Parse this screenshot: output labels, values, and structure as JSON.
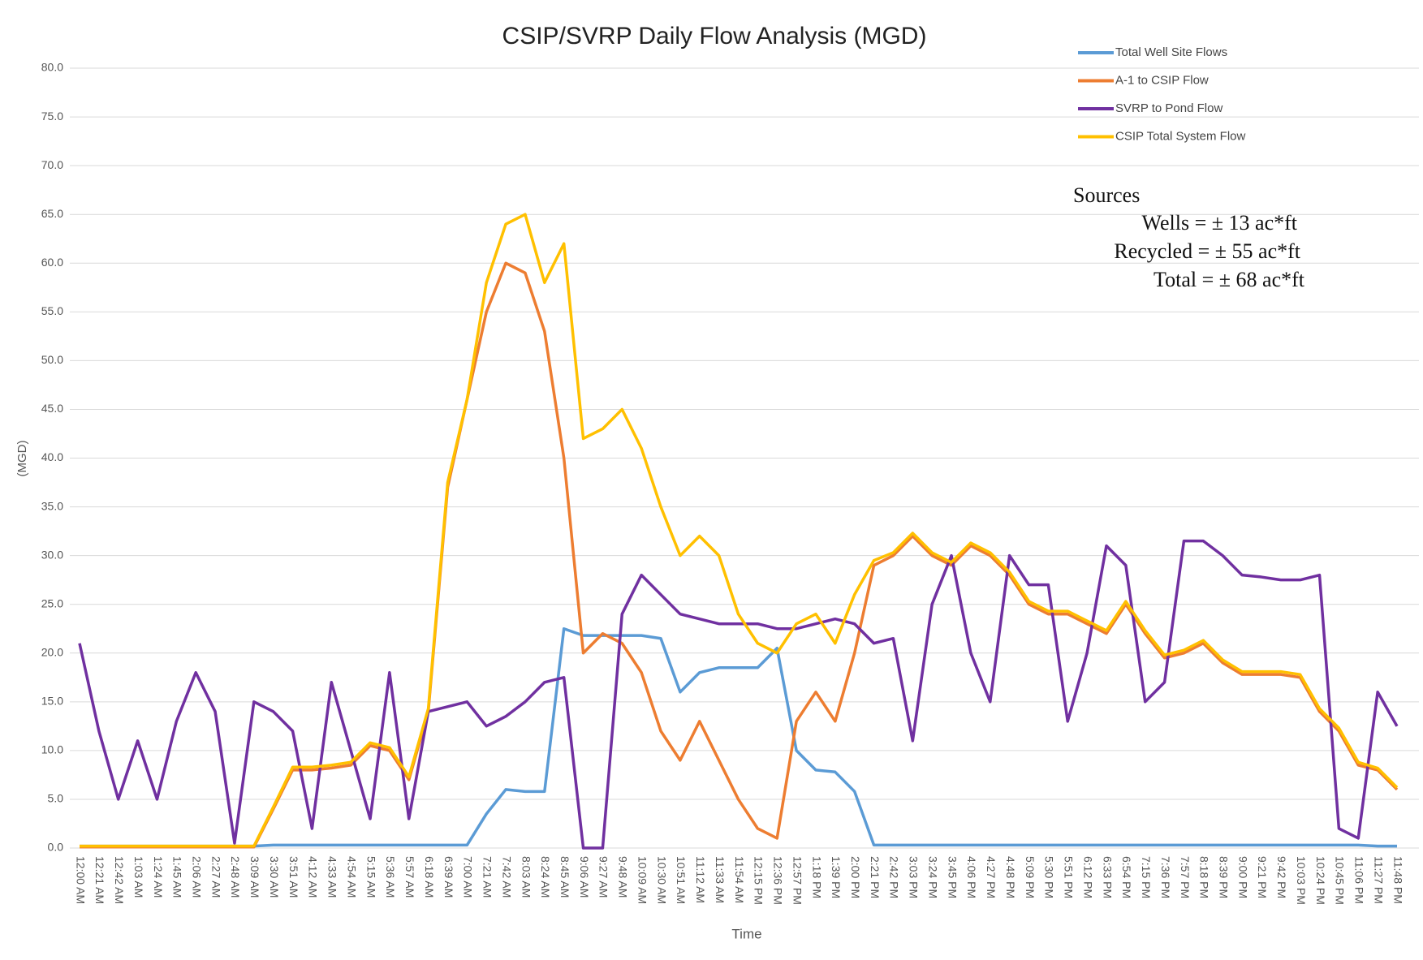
{
  "chart_data": {
    "type": "line",
    "title": "CSIP/SVRP Daily Flow Analysis (MGD)",
    "x_label": "Time",
    "y_label": "(MGD)",
    "annotations": [
      "Sources",
      "Wells =  ± 13 ac*ft",
      "Recycled  =  ± 55 ac*ft",
      "Total =   ± 68 ac*ft"
    ],
    "categories": [
      "12:00 AM",
      "12:21 AM",
      "12:42 AM",
      "1:03 AM",
      "1:24 AM",
      "1:45 AM",
      "2:06 AM",
      "2:27 AM",
      "2:48 AM",
      "3:09 AM",
      "3:30 AM",
      "3:51 AM",
      "4:12 AM",
      "4:33 AM",
      "4:54 AM",
      "5:15 AM",
      "5:36 AM",
      "5:57 AM",
      "6:18 AM",
      "6:39 AM",
      "7:00 AM",
      "7:21 AM",
      "7:42 AM",
      "8:03 AM",
      "8:24 AM",
      "8:45 AM",
      "9:06 AM",
      "9:27 AM",
      "9:48 AM",
      "10:09 AM",
      "10:30 AM",
      "10:51 AM",
      "11:12 AM",
      "11:33 AM",
      "11:54 AM",
      "12:15 PM",
      "12:36 PM",
      "12:57 PM",
      "1:18 PM",
      "1:39 PM",
      "2:00 PM",
      "2:21 PM",
      "2:42 PM",
      "3:03 PM",
      "3:24 PM",
      "3:45 PM",
      "4:06 PM",
      "4:27 PM",
      "4:48 PM",
      "5:09 PM",
      "5:30 PM",
      "5:51 PM",
      "6:12 PM",
      "6:33 PM",
      "6:54 PM",
      "7:15 PM",
      "7:36 PM",
      "7:57 PM",
      "8:18 PM",
      "8:39 PM",
      "9:00 PM",
      "9:21 PM",
      "9:42 PM",
      "10:03 PM",
      "10:24 PM",
      "10:45 PM",
      "11:06 PM",
      "11:27 PM",
      "11:48 PM"
    ],
    "series": [
      {
        "name": "Total Well Site Flows",
        "color": "#5b9bd5",
        "values": [
          0.2,
          0.2,
          0.2,
          0.2,
          0.2,
          0.2,
          0.2,
          0.2,
          0.2,
          0.2,
          0.3,
          0.3,
          0.3,
          0.3,
          0.3,
          0.3,
          0.3,
          0.3,
          0.3,
          0.3,
          0.3,
          3.5,
          6,
          5.8,
          5.8,
          22.5,
          21.8,
          21.8,
          21.8,
          21.8,
          21.5,
          16,
          18,
          18.5,
          18.5,
          18.5,
          20.5,
          10,
          8,
          7.8,
          5.8,
          0.3,
          0.3,
          0.3,
          0.3,
          0.3,
          0.3,
          0.3,
          0.3,
          0.3,
          0.3,
          0.3,
          0.3,
          0.3,
          0.3,
          0.3,
          0.3,
          0.3,
          0.3,
          0.3,
          0.3,
          0.3,
          0.3,
          0.3,
          0.3,
          0.3,
          0.3,
          0.2,
          0.2
        ]
      },
      {
        "name": "A-1 to CSIP Flow",
        "color": "#ed7d31",
        "values": [
          0.1,
          0.1,
          0.1,
          0.1,
          0.1,
          0.1,
          0.1,
          0.1,
          0.1,
          0.1,
          4,
          8,
          8,
          8.2,
          8.5,
          10.5,
          10,
          7,
          14,
          37,
          46,
          55,
          60,
          59,
          53,
          40,
          20,
          22,
          21,
          18,
          12,
          9,
          13,
          9,
          5,
          2,
          1,
          13,
          16,
          13,
          20,
          29,
          30,
          32,
          30,
          29,
          31,
          30,
          28,
          25,
          24,
          24,
          23,
          22,
          25,
          22,
          19.5,
          20,
          21,
          19,
          17.8,
          17.8,
          17.8,
          17.5,
          14,
          12,
          8.5,
          8,
          6
        ]
      },
      {
        "name": "SVRP to Pond Flow",
        "color": "#7030a0",
        "values": [
          21,
          12,
          5,
          11,
          5,
          13,
          18,
          14,
          0.5,
          15,
          14,
          12,
          2,
          17,
          10,
          3,
          18,
          3,
          14,
          14.5,
          15,
          12.5,
          13.5,
          15,
          17,
          17.5,
          0,
          0,
          24,
          28,
          26,
          24,
          23.5,
          23,
          23,
          23,
          22.5,
          22.5,
          23,
          23.5,
          23,
          21,
          21.5,
          11,
          25,
          30,
          20,
          15,
          30,
          27,
          27,
          13,
          20,
          31,
          29,
          15,
          17,
          31.5,
          31.5,
          30,
          28,
          27.8,
          27.5,
          27.5,
          28,
          2,
          1,
          16,
          12.5
        ]
      },
      {
        "name": "CSIP Total System Flow",
        "color": "#ffc000",
        "values": [
          0.2,
          0.2,
          0.2,
          0.2,
          0.2,
          0.2,
          0.2,
          0.2,
          0.2,
          0.2,
          4.2,
          8.3,
          8.3,
          8.5,
          8.8,
          10.8,
          10.3,
          7.3,
          14.3,
          37.5,
          46,
          58,
          64,
          65,
          58,
          62,
          42,
          43,
          45,
          41,
          35,
          30,
          32,
          30,
          24,
          21,
          20,
          23,
          24,
          21,
          26,
          29.5,
          30.3,
          32.3,
          30.3,
          29.3,
          31.3,
          30.3,
          28.3,
          25.3,
          24.3,
          24.3,
          23.3,
          22.3,
          25.3,
          22.3,
          19.8,
          20.3,
          21.3,
          19.3,
          18.1,
          18.1,
          18.1,
          17.8,
          14.3,
          12.3,
          8.8,
          8.2,
          6.2
        ]
      }
    ],
    "ylim": [
      0,
      80
    ],
    "yticks": [
      {
        "value": 0,
        "label": "0.0"
      },
      {
        "value": 5,
        "label": "5.0"
      },
      {
        "value": 10,
        "label": "10.0"
      },
      {
        "value": 15,
        "label": "15.0"
      },
      {
        "value": 20,
        "label": "20.0"
      },
      {
        "value": 25,
        "label": "25.0"
      },
      {
        "value": 30,
        "label": "30.0"
      },
      {
        "value": 35,
        "label": "35.0"
      },
      {
        "value": 40,
        "label": "40.0"
      },
      {
        "value": 45,
        "label": "45.0"
      },
      {
        "value": 50,
        "label": "50.0"
      },
      {
        "value": 55,
        "label": "55.0"
      },
      {
        "value": 60,
        "label": "60.0"
      },
      {
        "value": 65,
        "label": "65.0"
      },
      {
        "value": 70,
        "label": "70.0"
      },
      {
        "value": 75,
        "label": "75.0"
      },
      {
        "value": 80,
        "label": "80.0"
      }
    ],
    "grid": true,
    "legend": "top-right"
  }
}
